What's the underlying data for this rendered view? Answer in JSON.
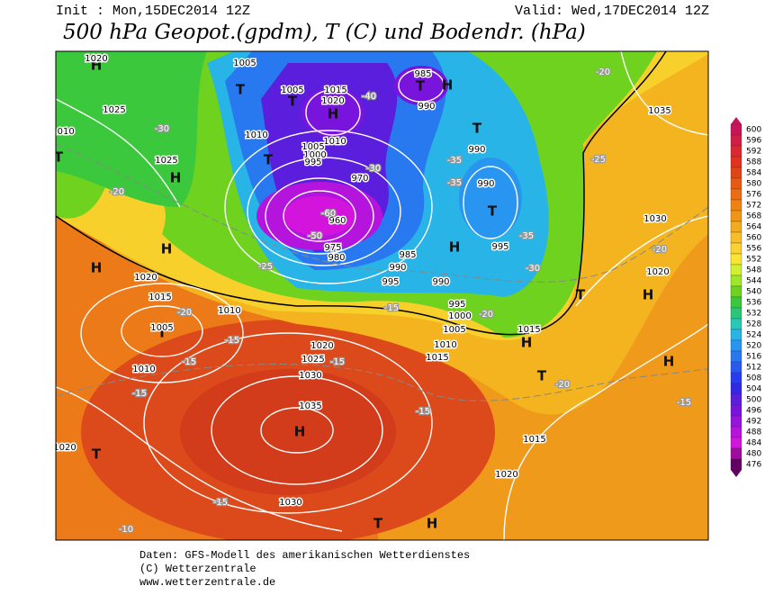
{
  "header": {
    "init": "Init : Mon,15DEC2014 12Z",
    "valid": "Valid: Wed,17DEC2014 12Z",
    "title": "500 hPa Geopot.(gpdm), T (C) und Bodendr. (hPa)"
  },
  "colorbar": {
    "labels": [
      600,
      596,
      592,
      588,
      584,
      580,
      576,
      572,
      568,
      564,
      560,
      556,
      552,
      548,
      544,
      540,
      536,
      532,
      528,
      524,
      520,
      516,
      512,
      508,
      504,
      500,
      496,
      492,
      488,
      484,
      480,
      476
    ],
    "colors": [
      "#c8145a",
      "#d21e46",
      "#dc2832",
      "#e0321e",
      "#e04614",
      "#e65a14",
      "#ec6e14",
      "#f08214",
      "#f09614",
      "#f4aa1e",
      "#f8be28",
      "#fad232",
      "#fae632",
      "#d2f032",
      "#a0e628",
      "#6ed21e",
      "#3cc83c",
      "#28c878",
      "#28c8b4",
      "#28b4e6",
      "#2896f0",
      "#2878f0",
      "#285af0",
      "#283cf0",
      "#3228e6",
      "#5a1edc",
      "#7814dc",
      "#9614dc",
      "#b414dc",
      "#d214dc",
      "#a00aa0",
      "#640064"
    ]
  },
  "map": {
    "systems": [
      "H",
      "H",
      "H",
      "H",
      "H",
      "H",
      "H",
      "H",
      "H",
      "H",
      "H",
      "H",
      "T",
      "T",
      "T",
      "T",
      "T",
      "T",
      "T",
      "T",
      "T",
      "T",
      "T",
      "T"
    ],
    "isobars": [
      1020,
      1025,
      1010,
      1025,
      1005,
      1005,
      1015,
      1020,
      1010,
      1010,
      1005,
      1000,
      995,
      970,
      985,
      990,
      990,
      990,
      995,
      960,
      975,
      980,
      985,
      990,
      995,
      990,
      995,
      1000,
      1005,
      1010,
      1015,
      1020,
      1015,
      1010,
      1005,
      1010,
      1020,
      1025,
      1030,
      1035,
      1030,
      1020,
      1015,
      1020,
      1015,
      1035,
      1030,
      1020
    ],
    "temperatures": [
      -30,
      -20,
      -25,
      -20,
      -15,
      -15,
      -15,
      -15,
      -10,
      -15,
      -15,
      -20,
      -30,
      -35,
      -35,
      -35,
      -25,
      -20,
      -20,
      -15,
      -20,
      -15,
      -40,
      -30,
      -50,
      -60
    ]
  },
  "footer": {
    "lines": [
      "Daten: GFS-Modell des amerikanischen Wetterdienstes",
      "(C) Wetterzentrale",
      "www.wetterzentrale.de"
    ]
  }
}
